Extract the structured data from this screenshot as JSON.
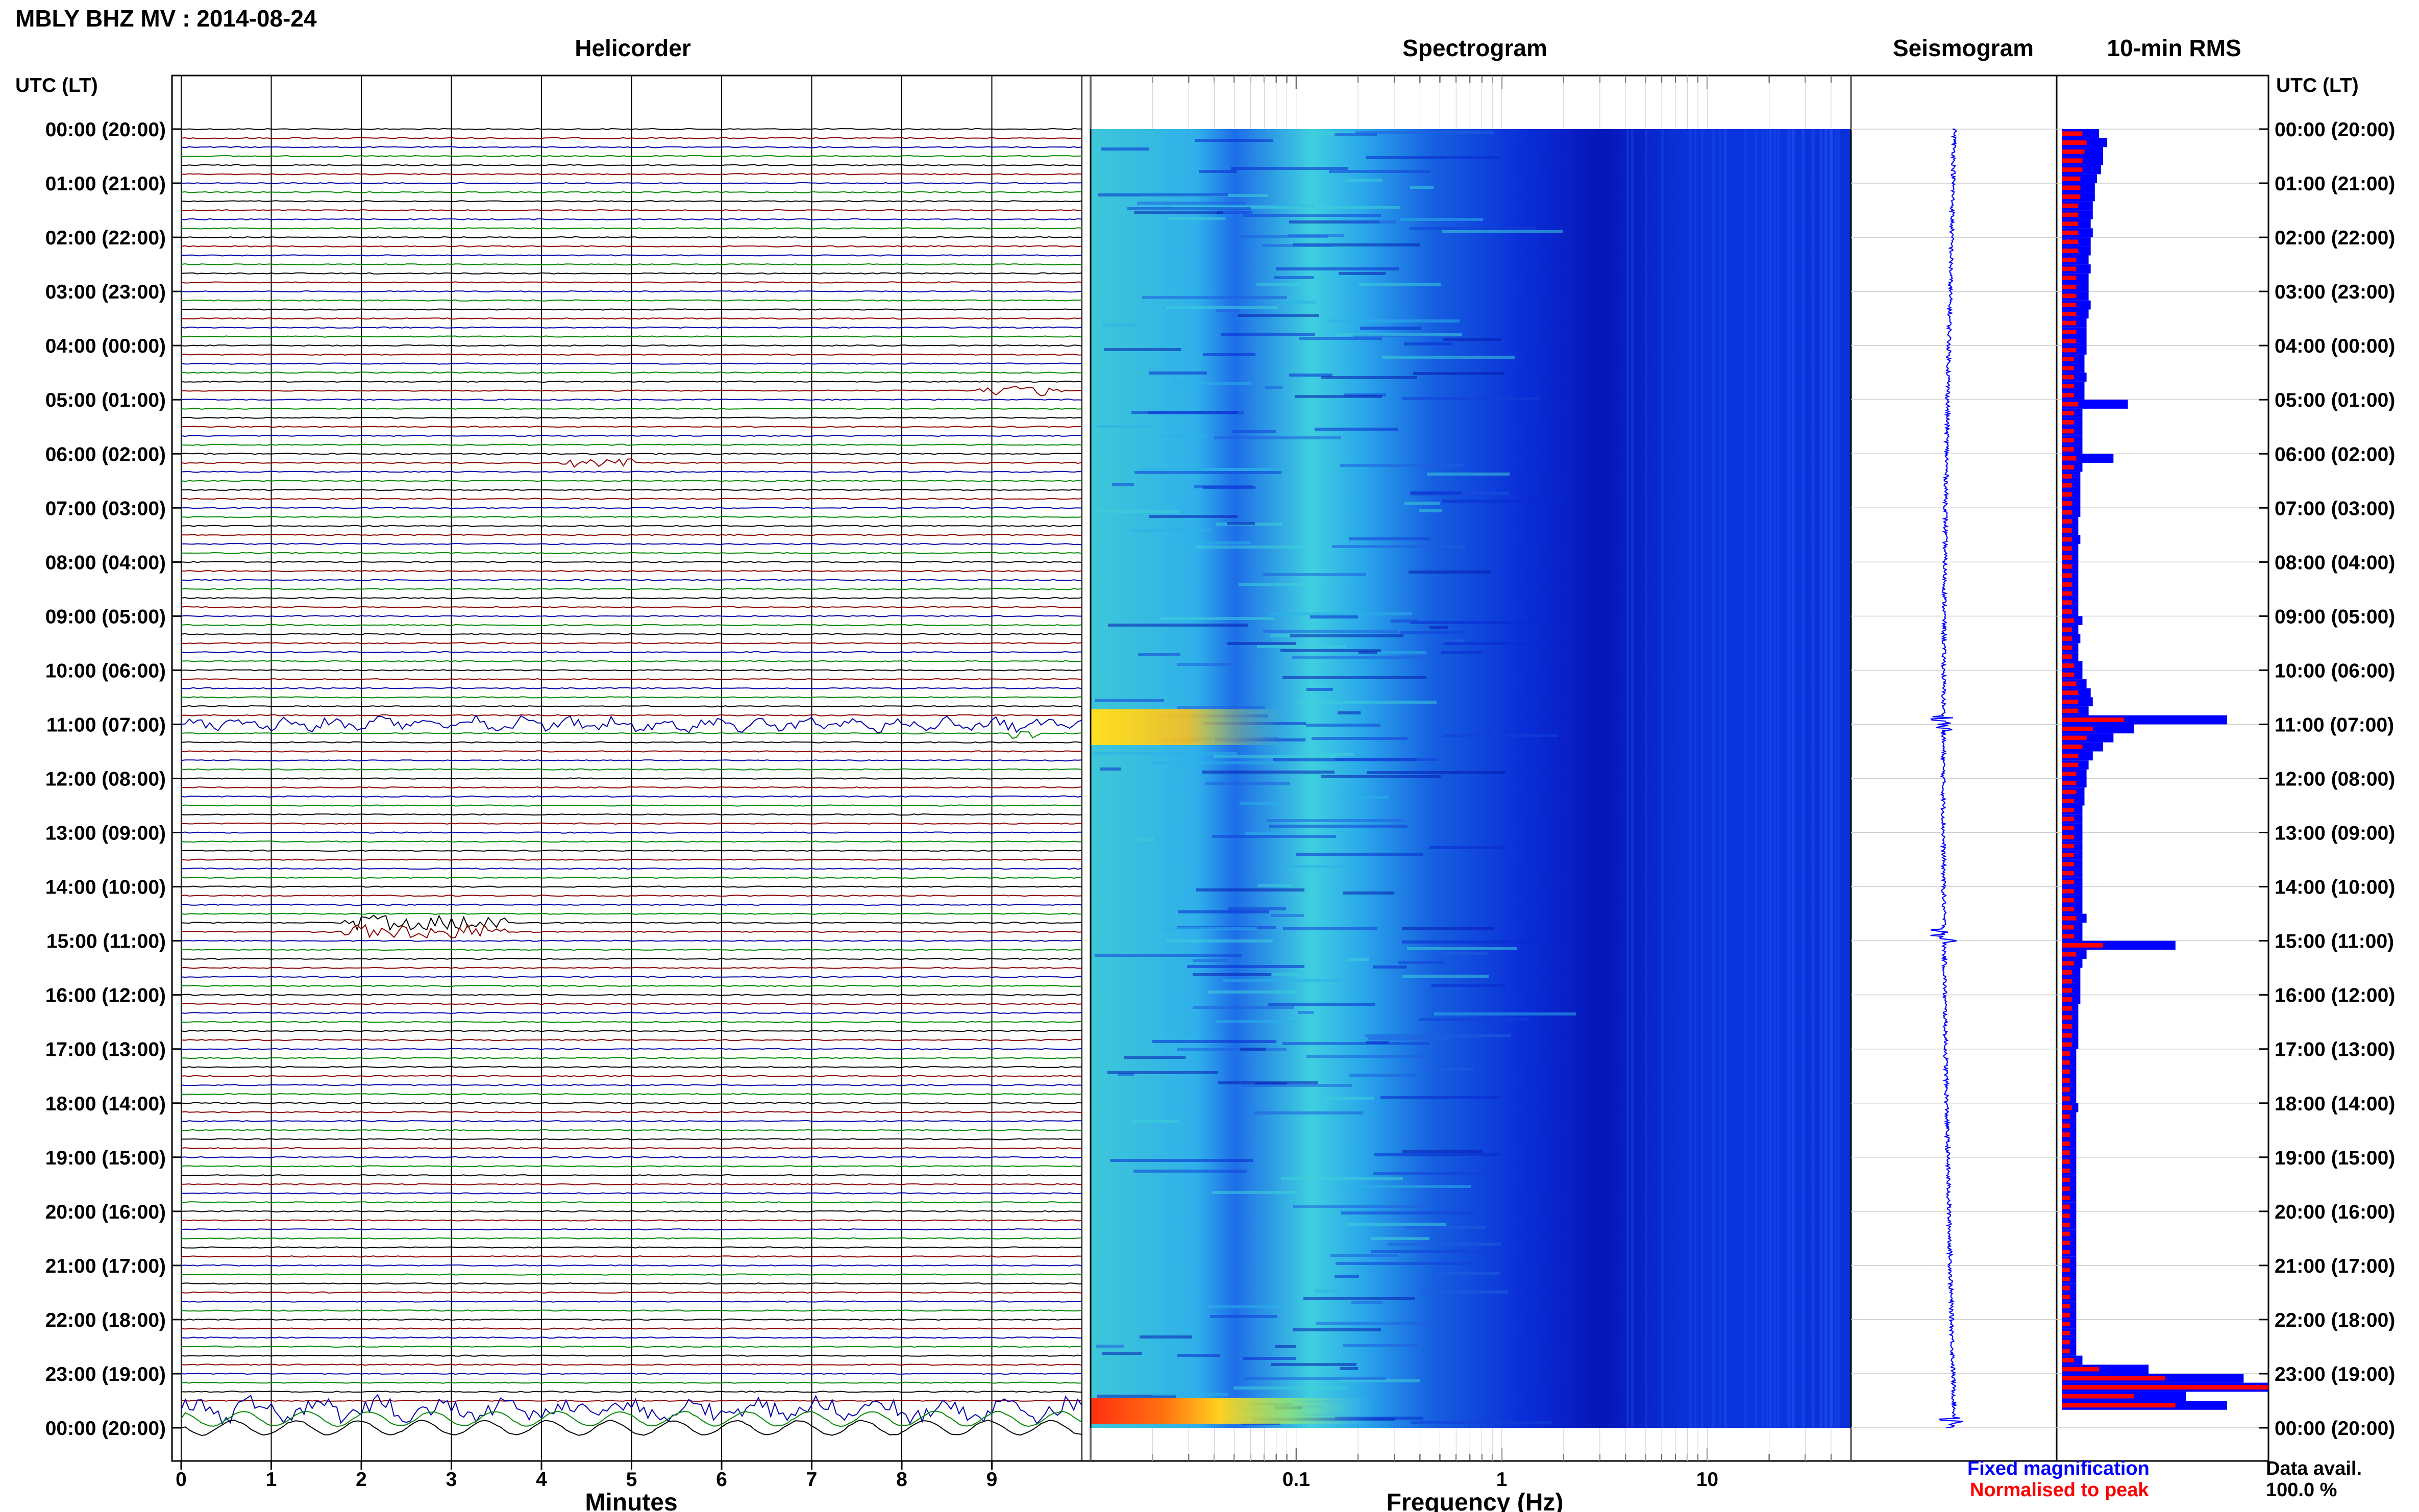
{
  "figure_title": "MBLY BHZ MV : 2014-08-24",
  "left_axis_label": "UTC (LT)",
  "right_axis_label": "UTC (LT)",
  "panels": {
    "helicorder": "Helicorder",
    "spectrogram": "Spectrogram",
    "seismogram": "Seismogram",
    "rms": "10-min RMS"
  },
  "legend": {
    "fixed": "Fixed magnification",
    "fixed_color": "#0000ff",
    "normalised": "Normalised to peak",
    "normalised_color": "#ff0000"
  },
  "data_avail": {
    "label": "Data avail.",
    "value": "100.0 %"
  },
  "colors": {
    "trace_black": "#000000",
    "trace_red": "#8b0000",
    "trace_blue": "#0000aa",
    "trace_green": "#008800",
    "seismogram": "#0000ff"
  },
  "chart_data": {
    "type": "heatmap",
    "time_labels": [
      "00:00 (20:00)",
      "01:00 (21:00)",
      "02:00 (22:00)",
      "03:00 (23:00)",
      "04:00 (00:00)",
      "05:00 (01:00)",
      "06:00 (02:00)",
      "07:00 (03:00)",
      "08:00 (04:00)",
      "09:00 (05:00)",
      "10:00 (06:00)",
      "11:00 (07:00)",
      "12:00 (08:00)",
      "13:00 (09:00)",
      "14:00 (10:00)",
      "15:00 (11:00)",
      "16:00 (12:00)",
      "17:00 (13:00)",
      "18:00 (14:00)",
      "19:00 (15:00)",
      "20:00 (16:00)",
      "21:00 (17:00)",
      "22:00 (18:00)",
      "23:00 (19:00)",
      "00:00 (20:00)"
    ],
    "helicorder": {
      "xlabel": "Minutes",
      "xticks": [
        "0",
        "1",
        "2",
        "3",
        "4",
        "5",
        "6",
        "7",
        "8",
        "9"
      ],
      "xlim": [
        0,
        10
      ],
      "trace_color_cycle": [
        "black",
        "red",
        "blue",
        "green"
      ],
      "notable_events": [
        {
          "hour": 4.9,
          "minute_start": 8.8,
          "minute_end": 9.8,
          "amplitude": 0.9
        },
        {
          "hour": 6.15,
          "minute_start": 4.2,
          "minute_end": 5.0,
          "amplitude": 0.6
        },
        {
          "hour": 10.95,
          "minute_start": 0.0,
          "minute_end": 10.0,
          "amplitude": 0.8
        },
        {
          "hour": 11.1,
          "minute_start": 9.2,
          "minute_end": 9.5,
          "amplitude": 1.1
        },
        {
          "hour": 14.75,
          "minute_start": 1.8,
          "minute_end": 3.6,
          "amplitude": 1.2
        },
        {
          "hour": 23.7,
          "minute_start": 0.0,
          "minute_end": 10.0,
          "amplitude": 1.3
        }
      ]
    },
    "spectrogram": {
      "xlabel": "Frequency (Hz)",
      "xscale": "log",
      "xticks": [
        "0.1",
        "1",
        "10"
      ],
      "xlim": [
        0.01,
        50
      ],
      "colormap": "jet"
    },
    "rms": {
      "interval_minutes": 10,
      "series": [
        {
          "name": "Fixed magnification",
          "color": "#0000ff",
          "values": [
            0.18,
            0.22,
            0.2,
            0.2,
            0.19,
            0.17,
            0.16,
            0.16,
            0.15,
            0.15,
            0.14,
            0.15,
            0.14,
            0.14,
            0.13,
            0.14,
            0.13,
            0.13,
            0.13,
            0.14,
            0.13,
            0.12,
            0.12,
            0.12,
            0.12,
            0.11,
            0.11,
            0.12,
            0.11,
            0.11,
            0.32,
            0.1,
            0.1,
            0.1,
            0.1,
            0.1,
            0.25,
            0.1,
            0.09,
            0.09,
            0.09,
            0.09,
            0.09,
            0.08,
            0.08,
            0.09,
            0.08,
            0.08,
            0.08,
            0.08,
            0.08,
            0.08,
            0.08,
            0.08,
            0.1,
            0.08,
            0.09,
            0.08,
            0.08,
            0.1,
            0.1,
            0.12,
            0.14,
            0.15,
            0.13,
            0.8,
            0.35,
            0.25,
            0.2,
            0.15,
            0.13,
            0.12,
            0.12,
            0.11,
            0.11,
            0.1,
            0.1,
            0.1,
            0.1,
            0.1,
            0.1,
            0.1,
            0.1,
            0.1,
            0.1,
            0.1,
            0.1,
            0.12,
            0.1,
            0.1,
            0.55,
            0.12,
            0.1,
            0.09,
            0.09,
            0.09,
            0.09,
            0.08,
            0.08,
            0.08,
            0.08,
            0.08,
            0.07,
            0.07,
            0.07,
            0.07,
            0.07,
            0.07,
            0.08,
            0.07,
            0.07,
            0.07,
            0.07,
            0.07,
            0.07,
            0.07,
            0.07,
            0.07,
            0.07,
            0.07,
            0.07,
            0.07,
            0.07,
            0.07,
            0.07,
            0.07,
            0.07,
            0.07,
            0.07,
            0.07,
            0.07,
            0.07,
            0.07,
            0.07,
            0.07,
            0.07,
            0.1,
            0.42,
            0.88,
            1.0,
            0.6,
            0.8
          ]
        },
        {
          "name": "Normalised to peak",
          "color": "#ff0000",
          "values": [
            0.1,
            0.12,
            0.11,
            0.1,
            0.1,
            0.09,
            0.09,
            0.09,
            0.08,
            0.08,
            0.08,
            0.08,
            0.08,
            0.08,
            0.07,
            0.07,
            0.07,
            0.07,
            0.07,
            0.07,
            0.07,
            0.07,
            0.07,
            0.07,
            0.07,
            0.06,
            0.06,
            0.06,
            0.06,
            0.06,
            0.08,
            0.06,
            0.06,
            0.06,
            0.06,
            0.06,
            0.07,
            0.06,
            0.05,
            0.05,
            0.05,
            0.05,
            0.05,
            0.05,
            0.05,
            0.05,
            0.05,
            0.05,
            0.05,
            0.05,
            0.05,
            0.05,
            0.05,
            0.05,
            0.06,
            0.05,
            0.05,
            0.05,
            0.05,
            0.06,
            0.06,
            0.07,
            0.08,
            0.08,
            0.08,
            0.3,
            0.15,
            0.12,
            0.1,
            0.08,
            0.08,
            0.07,
            0.07,
            0.07,
            0.06,
            0.06,
            0.06,
            0.06,
            0.06,
            0.06,
            0.06,
            0.06,
            0.06,
            0.06,
            0.06,
            0.06,
            0.06,
            0.07,
            0.06,
            0.06,
            0.2,
            0.07,
            0.06,
            0.05,
            0.05,
            0.05,
            0.05,
            0.05,
            0.05,
            0.05,
            0.05,
            0.05,
            0.04,
            0.04,
            0.04,
            0.04,
            0.04,
            0.04,
            0.05,
            0.04,
            0.04,
            0.04,
            0.04,
            0.04,
            0.04,
            0.04,
            0.04,
            0.04,
            0.04,
            0.04,
            0.04,
            0.04,
            0.04,
            0.04,
            0.04,
            0.04,
            0.04,
            0.04,
            0.04,
            0.04,
            0.04,
            0.04,
            0.04,
            0.04,
            0.04,
            0.04,
            0.06,
            0.18,
            0.5,
            1.0,
            0.35,
            0.55
          ]
        }
      ]
    }
  }
}
